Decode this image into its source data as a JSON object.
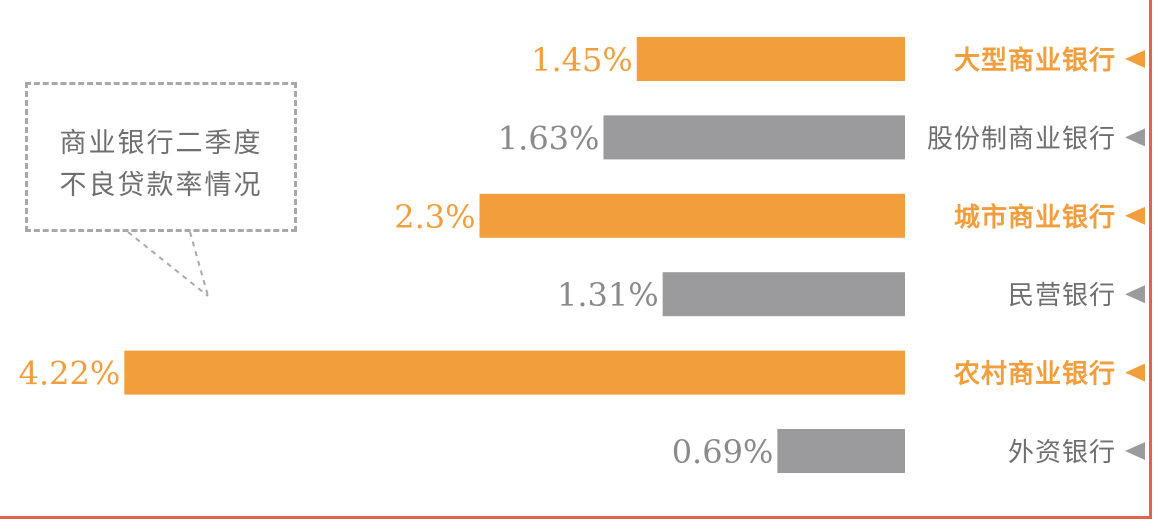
{
  "callout": {
    "line1": "商业银行二季度",
    "line2": "不良贷款率情况"
  },
  "colors": {
    "highlight": "#f29e3d",
    "neutral": "#9b9b9d",
    "highlight_text": "#f29e3d",
    "neutral_text": "#8a8a8a",
    "label_neutral": "#6f6f6f",
    "frame": "#e06250"
  },
  "chart_data": {
    "type": "bar",
    "orientation": "horizontal",
    "categories": [
      "大型商业银行",
      "股份制商业银行",
      "城市商业银行",
      "民营银行",
      "农村商业银行",
      "外资银行"
    ],
    "values": [
      1.45,
      1.63,
      2.3,
      1.31,
      4.22,
      0.69
    ],
    "value_labels": [
      "1.45%",
      "1.63%",
      "2.3%",
      "1.31%",
      "4.22%",
      "0.69%"
    ],
    "highlighted": [
      true,
      false,
      true,
      false,
      true,
      false
    ],
    "marker": "◀",
    "title": "",
    "xlabel": "",
    "ylabel": ""
  }
}
